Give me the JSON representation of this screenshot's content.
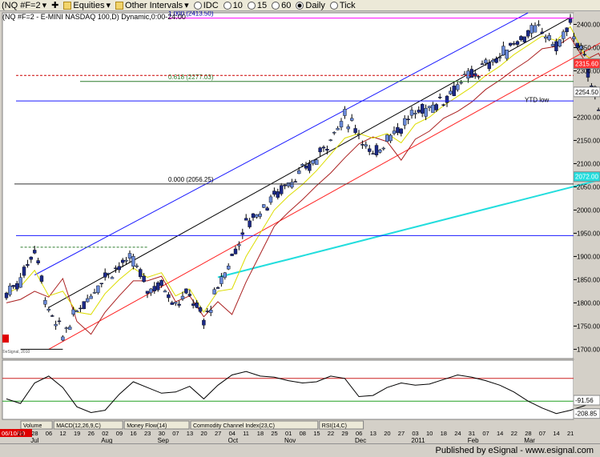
{
  "toolbar": {
    "symbol_combo": "(NQ #F=2",
    "items": [
      {
        "label": "Equities"
      },
      {
        "label": "Other Intervals"
      },
      {
        "label": "IDC"
      },
      {
        "label": "10"
      },
      {
        "label": "15"
      },
      {
        "label": "60"
      },
      {
        "label": "Daily"
      },
      {
        "label": "Tick"
      }
    ]
  },
  "chart_header": "(NQ #F=2 - E-MINI NASDAQ 100,D) Dynamic,0:00-24:00",
  "watermark": "©eSignal, 2010",
  "status": "Published by eSignal - www.esignal.com",
  "colors": {
    "background": "#ffffff",
    "up_candle": "#6a8ad8",
    "down_candle": "#1c2a88",
    "fib_line": "#2d7d2d",
    "channel_blue": "#1a1aff",
    "channel_black": "#000000",
    "trend_red": "#ff2020",
    "sma_cyan": "#22dddd",
    "ema_yellow": "#dddd00",
    "ma_darkred": "#aa2020",
    "magenta": "#ff00ff",
    "macd_line": "#000000",
    "cci_upper": "#cc2020",
    "cci_lower": "#20a020"
  },
  "tabs": [
    {
      "label": "Volume"
    },
    {
      "label": "MACD(12,26,9,C)"
    },
    {
      "label": "Money Flow(14)"
    },
    {
      "label": "Commodity Channel Index(23,C)"
    },
    {
      "label": "RSI(14,C)"
    }
  ],
  "chart_data": {
    "type": "candlestick",
    "y_axis": {
      "min": 1680,
      "max": 2425,
      "scale": "linear",
      "tick_labels": [
        "2400.00",
        "2350.00",
        "2300.00",
        "2250.00",
        "2200.00",
        "2150.00",
        "2100.00",
        "2050.00",
        "2000.00",
        "1950.00",
        "1900.00",
        "1850.00",
        "1800.00",
        "1750.00",
        "1700.00"
      ]
    },
    "x_axis": {
      "tick_labels": [
        "06/10/10",
        "21",
        "28",
        "06",
        "12",
        "19",
        "26",
        "02",
        "09",
        "16",
        "23",
        "30",
        "07",
        "13",
        "20",
        "27",
        "04",
        "11",
        "18",
        "25",
        "01",
        "08",
        "15",
        "22",
        "29",
        "06",
        "13",
        "20",
        "27",
        "03",
        "10",
        "18",
        "24",
        "31",
        "07",
        "14",
        "22",
        "28",
        "07",
        "14",
        "21"
      ],
      "month_labels": [
        {
          "label": "Jul",
          "index": 2
        },
        {
          "label": "Aug",
          "index": 7
        },
        {
          "label": "Sep",
          "index": 11
        },
        {
          "label": "Oct",
          "index": 16
        },
        {
          "label": "Nov",
          "index": 20
        },
        {
          "label": "Dec",
          "index": 25
        },
        {
          "label": "2011",
          "index": 29
        },
        {
          "label": "Feb",
          "index": 33
        },
        {
          "label": "Mar",
          "index": 37
        }
      ]
    },
    "price_path": [
      [
        0,
        1820
      ],
      [
        1,
        1850
      ],
      [
        2,
        1920
      ],
      [
        3,
        1780
      ],
      [
        4,
        1730
      ],
      [
        5,
        1780
      ],
      [
        6,
        1820
      ],
      [
        7,
        1860
      ],
      [
        8,
        1880
      ],
      [
        9,
        1890
      ],
      [
        10,
        1830
      ],
      [
        11,
        1840
      ],
      [
        12,
        1800
      ],
      [
        13,
        1820
      ],
      [
        14,
        1760
      ],
      [
        15,
        1830
      ],
      [
        16,
        1900
      ],
      [
        17,
        1970
      ],
      [
        18,
        2000
      ],
      [
        19,
        2030
      ],
      [
        20,
        2060
      ],
      [
        21,
        2080
      ],
      [
        22,
        2110
      ],
      [
        23,
        2160
      ],
      [
        24,
        2200
      ],
      [
        25,
        2170
      ],
      [
        26,
        2110
      ],
      [
        27,
        2160
      ],
      [
        28,
        2180
      ],
      [
        29,
        2210
      ],
      [
        30,
        2220
      ],
      [
        31,
        2240
      ],
      [
        32,
        2270
      ],
      [
        33,
        2290
      ],
      [
        34,
        2310
      ],
      [
        35,
        2330
      ],
      [
        36,
        2360
      ],
      [
        37,
        2380
      ],
      [
        38,
        2390
      ],
      [
        39,
        2350
      ],
      [
        40,
        2400
      ],
      [
        41,
        2320
      ],
      [
        42,
        2230
      ],
      [
        43,
        2250
      ]
    ],
    "price_labels": [
      {
        "label": "2315.60",
        "value": 2315.6,
        "color": "#ff3030"
      },
      {
        "label": "2254.50",
        "value": 2254.5,
        "color": "#ffffff"
      },
      {
        "label": "2072.00",
        "value": 2072.0,
        "color": "#22dddd"
      }
    ],
    "fib_levels": [
      {
        "label": "1.000 (2413.50)",
        "value": 2413.5
      },
      {
        "label": "0.618 (2277.03)",
        "value": 2277.03
      },
      {
        "label": "0.000 (2056.25)",
        "value": 2056.25
      }
    ],
    "annotations": [
      {
        "label": "YTD low",
        "value": 2236
      }
    ],
    "horizontal_lines": [
      {
        "value": 1945,
        "color": "#1a1aff"
      },
      {
        "value": 2235,
        "color": "#1a1aff"
      },
      {
        "value": 2290,
        "color": "#cc0000"
      }
    ],
    "subpanel": {
      "indicator": "Commodity Channel Index(23,C)",
      "value_labels": [
        {
          "label": "-91.56",
          "value": -91.56
        },
        {
          "label": "-208.85",
          "value": -208.85
        }
      ],
      "upper_band": 100,
      "lower_band": -100,
      "series": [
        -80,
        -120,
        60,
        120,
        20,
        -150,
        -200,
        -180,
        -40,
        70,
        20,
        -30,
        -20,
        30,
        -80,
        40,
        130,
        160,
        120,
        110,
        80,
        60,
        70,
        120,
        100,
        -60,
        -50,
        20,
        60,
        40,
        50,
        90,
        130,
        110,
        80,
        40,
        -20,
        -100,
        -160,
        -208.85,
        -180,
        -140,
        -91.56
      ]
    }
  }
}
